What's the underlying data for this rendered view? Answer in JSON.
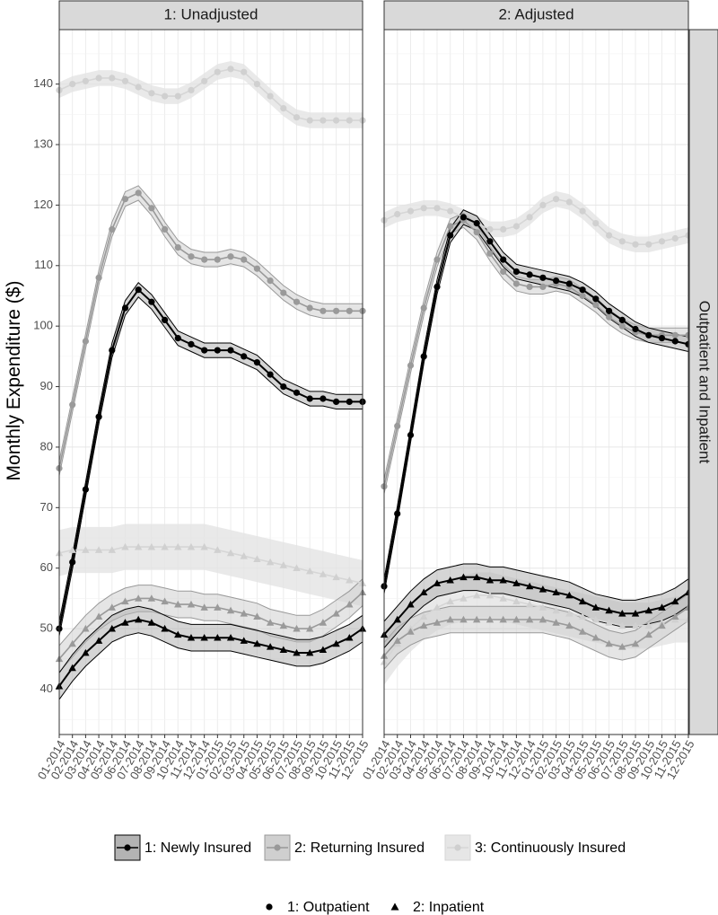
{
  "chart_data": {
    "type": "line",
    "ylabel": "Monthly Expenditure ($)",
    "xlabel": "",
    "ylim": [
      32.5,
      149
    ],
    "yticks": [
      40,
      50,
      60,
      70,
      80,
      90,
      100,
      110,
      120,
      130,
      140
    ],
    "grid": true,
    "row_strip": "Outpatient and Inpatient",
    "x": [
      "01-2014",
      "02-2014",
      "03-2014",
      "04-2014",
      "05-2014",
      "06-2014",
      "07-2014",
      "08-2014",
      "09-2014",
      "10-2014",
      "11-2014",
      "12-2014",
      "01-2015",
      "02-2015",
      "03-2015",
      "04-2015",
      "05-2015",
      "06-2015",
      "07-2015",
      "08-2015",
      "09-2015",
      "10-2015",
      "11-2015",
      "12-2015"
    ],
    "panels": [
      {
        "title": "1: Unadjusted",
        "series": [
          {
            "group": "1: Newly Insured",
            "type": "1: Outpatient",
            "values": [
              50,
              61,
              73,
              85,
              96,
              103,
              106,
              104,
              101,
              98,
              97,
              96,
              96,
              96,
              95,
              94,
              92,
              90,
              89,
              88,
              88,
              87.5,
              87.5,
              87.5
            ]
          },
          {
            "group": "2: Returning Insured",
            "type": "1: Outpatient",
            "values": [
              76.5,
              87,
              97.5,
              108,
              116,
              121,
              122,
              119.5,
              116,
              113,
              111.5,
              111,
              111,
              111.5,
              111,
              109.5,
              107.5,
              105.5,
              104,
              103,
              102.5,
              102.5,
              102.5,
              102.5
            ]
          },
          {
            "group": "3: Continuously Insured",
            "type": "1: Outpatient",
            "values": [
              139,
              140,
              140.5,
              141,
              141,
              140.5,
              139.5,
              138.5,
              138,
              138,
              139,
              140.5,
              142,
              142.5,
              142,
              140,
              138,
              136,
              134.5,
              134,
              134,
              134,
              134,
              134
            ]
          },
          {
            "group": "1: Newly Insured",
            "type": "2: Inpatient",
            "values": [
              40.5,
              43.5,
              46,
              48,
              50,
              51,
              51.5,
              51,
              50,
              49,
              48.5,
              48.5,
              48.5,
              48.5,
              48,
              47.5,
              47,
              46.5,
              46,
              46,
              46.5,
              47.5,
              48.5,
              50
            ]
          },
          {
            "group": "2: Returning Insured",
            "type": "2: Inpatient",
            "values": [
              45,
              47.5,
              50,
              52,
              53.5,
              54.5,
              55,
              55,
              54.5,
              54,
              54,
              53.5,
              53.5,
              53,
              52.5,
              52,
              51,
              50.5,
              50,
              50,
              51,
              52.5,
              54,
              56
            ]
          },
          {
            "group": "3: Continuously Insured",
            "type": "2: Inpatient",
            "values": [
              62.5,
              63,
              63,
              63,
              63,
              63.5,
              63.5,
              63.5,
              63.5,
              63.5,
              63.5,
              63.5,
              63,
              62.5,
              62,
              61.5,
              61,
              60.5,
              60,
              59.5,
              59,
              58.5,
              58,
              57.5
            ]
          }
        ]
      },
      {
        "title": "2: Adjusted",
        "series": [
          {
            "group": "1: Newly Insured",
            "type": "1: Outpatient",
            "values": [
              57,
              69,
              82,
              95,
              106.5,
              115,
              118,
              117,
              114,
              111,
              109,
              108.5,
              108,
              107.5,
              107,
              106,
              104.5,
              102.5,
              101,
              99.5,
              98.5,
              98,
              97.5,
              97
            ]
          },
          {
            "group": "2: Returning Insured",
            "type": "1: Outpatient",
            "values": [
              73.5,
              83.5,
              93.5,
              103,
              111,
              116.5,
              117.5,
              115.5,
              112,
              109,
              107,
              106.5,
              106.5,
              107,
              106.5,
              105,
              103.5,
              101.5,
              100,
              99,
              98.5,
              98.5,
              98.5,
              98.5
            ]
          },
          {
            "group": "3: Continuously Insured",
            "type": "1: Outpatient",
            "values": [
              117.5,
              118.5,
              119,
              119.5,
              119.5,
              119,
              118,
              117,
              116,
              116,
              116.5,
              118,
              120,
              121,
              120.5,
              119,
              117,
              115,
              114,
              113.5,
              113.5,
              114,
              114.5,
              115
            ]
          },
          {
            "group": "1: Newly Insured",
            "type": "2: Inpatient",
            "values": [
              49,
              51.5,
              54,
              56,
              57.5,
              58,
              58.5,
              58.5,
              58,
              58,
              57.5,
              57,
              56.5,
              56,
              55.5,
              54.5,
              53.5,
              53,
              52.5,
              52.5,
              53,
              53.5,
              54.5,
              56
            ]
          },
          {
            "group": "2: Returning Insured",
            "type": "2: Inpatient",
            "values": [
              45.5,
              48,
              49.5,
              50.5,
              51,
              51.5,
              51.5,
              51.5,
              51.5,
              51.5,
              51.5,
              51.5,
              51.5,
              51,
              50.5,
              49.5,
              48.5,
              47.5,
              47,
              47.5,
              49,
              50.5,
              52,
              53.5
            ]
          },
          {
            "group": "3: Continuously Insured",
            "type": "2: Inpatient",
            "values": [
              44.5,
              47.5,
              50,
              52,
              53.5,
              54.5,
              55,
              55.5,
              55.5,
              55,
              54.5,
              54,
              53.5,
              53,
              52.5,
              52,
              51.5,
              51,
              50.5,
              50.5,
              50.5,
              51,
              51.5,
              51.5
            ]
          }
        ]
      }
    ],
    "legend": {
      "placement": "bottom",
      "groups": [
        {
          "label": "1: Newly Insured",
          "line": "#000000",
          "fill": "#b3b3b3"
        },
        {
          "label": "2: Returning Insured",
          "line": "#999999",
          "fill": "#cfcfcf"
        },
        {
          "label": "3: Continuously Insured",
          "line": "#d6d6d6",
          "fill": "#e6e6e6"
        }
      ],
      "types": [
        {
          "label": "1: Outpatient",
          "shape": "circle"
        },
        {
          "label": "2: Inpatient",
          "shape": "triangle"
        }
      ]
    }
  }
}
